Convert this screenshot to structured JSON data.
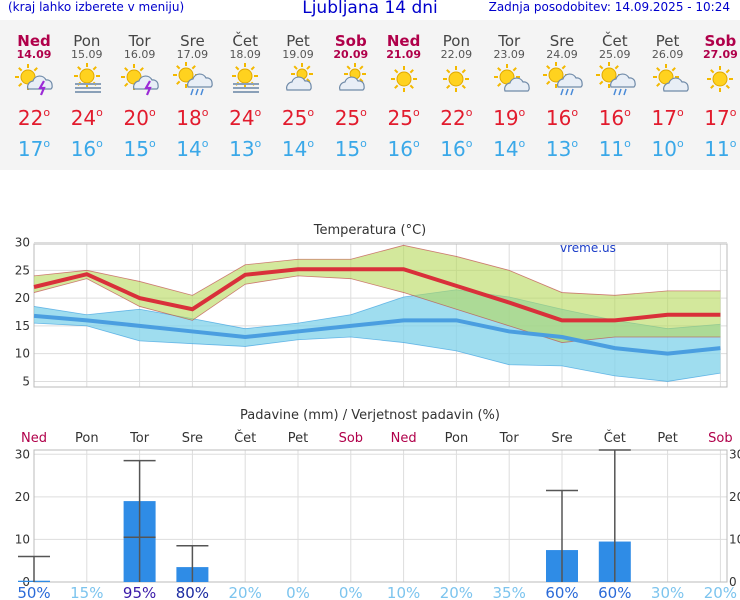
{
  "header": {
    "menu_hint": "(kraj lahko izberete v meniju)",
    "title": "Ljubljana 14 dni",
    "updated": "Zadnja posodobitev: 14.09.2025 - 10:24"
  },
  "forecast": [
    {
      "day": "Ned",
      "date": "14.09",
      "weekend": true,
      "icon": "sun-thunder-icon",
      "tmax": "22",
      "tmin": "17"
    },
    {
      "day": "Pon",
      "date": "15.09",
      "weekend": false,
      "icon": "sun-fog-icon",
      "tmax": "24",
      "tmin": "16"
    },
    {
      "day": "Tor",
      "date": "16.09",
      "weekend": false,
      "icon": "sun-thunder-icon",
      "tmax": "20",
      "tmin": "15"
    },
    {
      "day": "Sre",
      "date": "17.09",
      "weekend": false,
      "icon": "sun-cloud-rain-icon",
      "tmax": "18",
      "tmin": "14"
    },
    {
      "day": "Čet",
      "date": "18.09",
      "weekend": false,
      "icon": "sun-fog-icon",
      "tmax": "24",
      "tmin": "13"
    },
    {
      "day": "Pet",
      "date": "19.09",
      "weekend": false,
      "icon": "cloud-sun-icon",
      "tmax": "25",
      "tmin": "14"
    },
    {
      "day": "Sob",
      "date": "20.09",
      "weekend": true,
      "icon": "cloud-sun-icon",
      "tmax": "25",
      "tmin": "15"
    },
    {
      "day": "Ned",
      "date": "21.09",
      "weekend": true,
      "icon": "sun-icon",
      "tmax": "25",
      "tmin": "16"
    },
    {
      "day": "Pon",
      "date": "22.09",
      "weekend": false,
      "icon": "sun-icon",
      "tmax": "22",
      "tmin": "16"
    },
    {
      "day": "Tor",
      "date": "23.09",
      "weekend": false,
      "icon": "sun-cloud-icon",
      "tmax": "19",
      "tmin": "14"
    },
    {
      "day": "Sre",
      "date": "24.09",
      "weekend": false,
      "icon": "sun-cloud-rain-icon",
      "tmax": "16",
      "tmin": "13"
    },
    {
      "day": "Čet",
      "date": "25.09",
      "weekend": false,
      "icon": "sun-cloud-rain-icon",
      "tmax": "16",
      "tmin": "11"
    },
    {
      "day": "Pet",
      "date": "26.09",
      "weekend": false,
      "icon": "sun-cloud-icon",
      "tmax": "17",
      "tmin": "10"
    },
    {
      "day": "Sob",
      "date": "27.09",
      "weekend": true,
      "icon": "sun-icon",
      "tmax": "17",
      "tmin": "11"
    }
  ],
  "chart_data": [
    {
      "type": "line",
      "title": "Temperatura (°C)",
      "watermark": "vreme.us",
      "ylim": [
        4,
        31
      ],
      "yticks": [
        5,
        10,
        15,
        20,
        25,
        30
      ],
      "grid": true,
      "series": [
        {
          "name": "max",
          "color": "#d9303a",
          "values": [
            22,
            24.3,
            20,
            18,
            24.2,
            25.2,
            25.2,
            25.2,
            22.2,
            19.2,
            16,
            16,
            17,
            17
          ]
        },
        {
          "name": "max_upper",
          "color": "#c8e08a",
          "values": [
            24,
            25,
            23,
            20.5,
            26,
            27,
            27,
            29.5,
            27.5,
            25,
            21,
            20.5,
            21.3,
            21.3
          ]
        },
        {
          "name": "max_lower",
          "color": "#c8e08a",
          "values": [
            21,
            23.5,
            18.5,
            16,
            22.5,
            24,
            23.5,
            21,
            18,
            15,
            12,
            13,
            13,
            13
          ]
        },
        {
          "name": "min",
          "color": "#4aa0e0",
          "values": [
            16.8,
            16,
            15,
            14,
            13,
            14,
            15,
            16,
            16,
            14,
            13,
            11,
            10,
            11
          ]
        },
        {
          "name": "min_upper",
          "color": "#8fd8ec",
          "values": [
            18.5,
            17,
            18,
            16.3,
            14.5,
            15.5,
            17,
            20.2,
            21.5,
            20.2,
            18,
            16,
            14.5,
            15.3
          ]
        },
        {
          "name": "min_lower",
          "color": "#8fd8ec",
          "values": [
            15.5,
            15,
            12.3,
            11.8,
            11.3,
            12.5,
            13,
            12,
            10.5,
            8,
            7.8,
            6,
            5,
            6.5
          ]
        }
      ]
    },
    {
      "type": "bar",
      "title": "Padavine (mm) / Verjetnost padavin (%)",
      "categories": [
        "Ned",
        "Pon",
        "Tor",
        "Sre",
        "Čet",
        "Pet",
        "Sob",
        "Ned",
        "Pon",
        "Tor",
        "Sre",
        "Čet",
        "Pet",
        "Sob"
      ],
      "ylim": [
        0,
        31
      ],
      "yticks": [
        0,
        10,
        20,
        30
      ],
      "values": [
        0.3,
        0,
        19,
        3.5,
        0,
        0,
        0,
        0,
        0,
        0,
        7.5,
        9.5,
        0,
        0
      ],
      "error_max": [
        6,
        0,
        28.5,
        8.5,
        0,
        0,
        0,
        0,
        0,
        0,
        21.5,
        31,
        0,
        0
      ],
      "error_min": [
        0,
        0,
        10.5,
        0,
        0,
        0,
        0,
        0,
        0,
        0,
        0,
        0,
        0,
        0
      ],
      "probability": [
        "50%",
        "15%",
        "95%",
        "80%",
        "20%",
        "0%",
        "0%",
        "10%",
        "20%",
        "35%",
        "60%",
        "60%",
        "30%",
        "20%"
      ],
      "bar_color": "#2f8ce6"
    }
  ]
}
